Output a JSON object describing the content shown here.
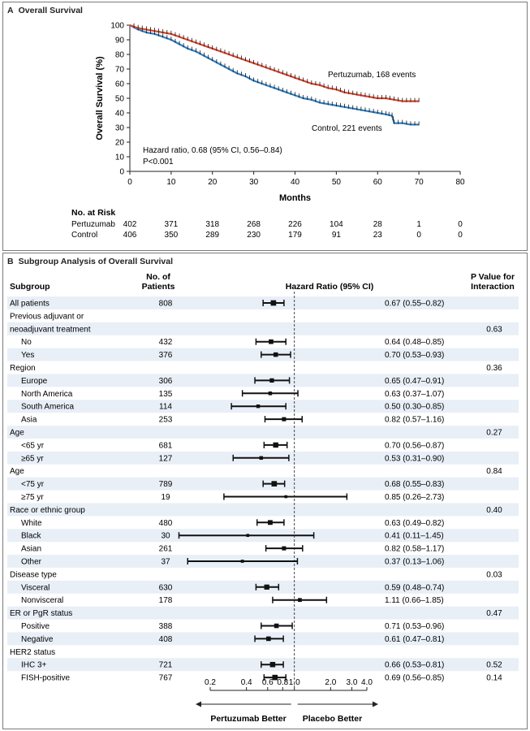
{
  "chart_data": [
    {
      "type": "line",
      "panel_letter": "A",
      "title": "Overall Survival",
      "xlabel": "Months",
      "ylabel": "Overall Survival (%)",
      "xlim": [
        0,
        80
      ],
      "ylim": [
        0,
        100
      ],
      "xticks": [
        0,
        10,
        20,
        30,
        40,
        50,
        60,
        70,
        80
      ],
      "yticks": [
        0,
        10,
        20,
        30,
        40,
        50,
        60,
        70,
        80,
        90,
        100
      ],
      "grid": false,
      "series": [
        {
          "name": "Pertuzumab, 168 events",
          "color": "#d9442c",
          "x": [
            0,
            2,
            4,
            6,
            8,
            10,
            12,
            14,
            16,
            18,
            20,
            22,
            24,
            26,
            28,
            30,
            32,
            34,
            36,
            38,
            40,
            42,
            44,
            46,
            48,
            50,
            52,
            54,
            56,
            58,
            60,
            62,
            64,
            66,
            68,
            70
          ],
          "y": [
            100,
            98,
            97,
            96,
            95,
            94,
            92,
            90,
            88,
            86,
            84,
            82,
            80,
            78,
            76,
            74,
            72,
            70,
            68,
            66,
            64,
            62,
            60,
            59,
            57,
            56,
            54,
            53,
            52,
            51,
            50,
            50,
            49,
            48,
            48,
            48
          ]
        },
        {
          "name": "Control, 221 events",
          "color": "#2f7fc1",
          "x": [
            0,
            2,
            4,
            6,
            8,
            10,
            12,
            14,
            16,
            18,
            20,
            22,
            24,
            26,
            28,
            30,
            32,
            34,
            36,
            38,
            40,
            42,
            44,
            46,
            48,
            50,
            52,
            54,
            56,
            58,
            60,
            62,
            63.5,
            64,
            66,
            68,
            70
          ],
          "y": [
            100,
            97,
            95,
            94,
            92,
            90,
            87,
            84,
            82,
            79,
            76,
            73,
            70,
            67,
            65,
            62,
            60,
            58,
            56,
            54,
            52,
            50,
            49,
            47,
            46,
            45,
            44,
            43,
            42,
            41,
            40,
            39,
            38,
            33,
            33,
            32,
            32
          ]
        }
      ],
      "annotations": [
        "Hazard ratio, 0.68 (95% CI, 0.56–0.84)",
        "P<0.001"
      ],
      "risk_table": {
        "header": "No. at Risk",
        "months": [
          0,
          10,
          20,
          30,
          40,
          50,
          60,
          70,
          80
        ],
        "rows": [
          {
            "label": "Pertuzumab",
            "values": [
              "402",
              "371",
              "318",
              "268",
              "226",
              "104",
              "28",
              "1",
              "0"
            ]
          },
          {
            "label": "Control",
            "values": [
              "406",
              "350",
              "289",
              "230",
              "179",
              "91",
              "23",
              "0",
              "0"
            ]
          }
        ]
      }
    },
    {
      "type": "forest",
      "panel_letter": "B",
      "title": "Subgroup Analysis of Overall Survival",
      "headers": {
        "subgroup": "Subgroup",
        "patients_line1": "No. of",
        "patients_line2": "Patients",
        "hr": "Hazard Ratio (95% CI)",
        "pvalue_line1": "P Value for",
        "pvalue_line2": "Interaction"
      },
      "xaxis": {
        "scale": "log",
        "ticks": [
          "0.2",
          "0.4",
          "0.6",
          "0.8",
          "1.0",
          "2.0",
          "3.0",
          "4.0"
        ],
        "tick_values": [
          0.2,
          0.4,
          0.6,
          0.8,
          1.0,
          2.0,
          3.0,
          4.0
        ],
        "range": [
          0.2,
          4.0
        ],
        "left_label": "Pertuzumab Better",
        "right_label": "Placebo Better"
      },
      "rows": [
        {
          "label": "All patients",
          "indent": 0,
          "n": "808",
          "hr": 0.67,
          "lo": 0.55,
          "hi": 0.82,
          "text": "0.67 (0.55–0.82)",
          "p": ""
        },
        {
          "label": "Previous adjuvant or",
          "indent": 0,
          "n": "",
          "hr": null,
          "lo": null,
          "hi": null,
          "text": "",
          "p": ""
        },
        {
          "label": "neoadjuvant treatment",
          "indent": 0,
          "n": "",
          "hr": null,
          "lo": null,
          "hi": null,
          "text": "",
          "p": "0.63"
        },
        {
          "label": "No",
          "indent": 1,
          "n": "432",
          "hr": 0.64,
          "lo": 0.48,
          "hi": 0.85,
          "text": "0.64 (0.48–0.85)",
          "p": ""
        },
        {
          "label": "Yes",
          "indent": 1,
          "n": "376",
          "hr": 0.7,
          "lo": 0.53,
          "hi": 0.93,
          "text": "0.70 (0.53–0.93)",
          "p": ""
        },
        {
          "label": "Region",
          "indent": 0,
          "n": "",
          "hr": null,
          "lo": null,
          "hi": null,
          "text": "",
          "p": "0.36"
        },
        {
          "label": "Europe",
          "indent": 1,
          "n": "306",
          "hr": 0.65,
          "lo": 0.47,
          "hi": 0.91,
          "text": "0.65 (0.47–0.91)",
          "p": ""
        },
        {
          "label": "North America",
          "indent": 1,
          "n": "135",
          "hr": 0.63,
          "lo": 0.37,
          "hi": 1.07,
          "text": "0.63 (0.37–1.07)",
          "p": ""
        },
        {
          "label": "South America",
          "indent": 1,
          "n": "114",
          "hr": 0.5,
          "lo": 0.3,
          "hi": 0.85,
          "text": "0.50 (0.30–0.85)",
          "p": ""
        },
        {
          "label": "Asia",
          "indent": 1,
          "n": "253",
          "hr": 0.82,
          "lo": 0.57,
          "hi": 1.16,
          "text": "0.82 (0.57–1.16)",
          "p": ""
        },
        {
          "label": "Age",
          "indent": 0,
          "n": "",
          "hr": null,
          "lo": null,
          "hi": null,
          "text": "",
          "p": "0.27"
        },
        {
          "label": "<65 yr",
          "indent": 1,
          "n": "681",
          "hr": 0.7,
          "lo": 0.56,
          "hi": 0.87,
          "text": "0.70 (0.56–0.87)",
          "p": ""
        },
        {
          "label": "≥65 yr",
          "indent": 1,
          "n": "127",
          "hr": 0.53,
          "lo": 0.31,
          "hi": 0.9,
          "text": "0.53 (0.31–0.90)",
          "p": ""
        },
        {
          "label": "Age",
          "indent": 0,
          "n": "",
          "hr": null,
          "lo": null,
          "hi": null,
          "text": "",
          "p": "0.84"
        },
        {
          "label": "<75 yr",
          "indent": 1,
          "n": "789",
          "hr": 0.68,
          "lo": 0.55,
          "hi": 0.83,
          "text": "0.68 (0.55–0.83)",
          "p": ""
        },
        {
          "label": "≥75 yr",
          "indent": 1,
          "n": "19",
          "hr": 0.85,
          "lo": 0.26,
          "hi": 2.73,
          "text": "0.85 (0.26–2.73)",
          "p": ""
        },
        {
          "label": "Race or ethnic group",
          "indent": 0,
          "n": "",
          "hr": null,
          "lo": null,
          "hi": null,
          "text": "",
          "p": "0.40"
        },
        {
          "label": "White",
          "indent": 1,
          "n": "480",
          "hr": 0.63,
          "lo": 0.49,
          "hi": 0.82,
          "text": "0.63 (0.49–0.82)",
          "p": ""
        },
        {
          "label": "Black",
          "indent": 1,
          "n": "30",
          "hr": 0.41,
          "lo": 0.11,
          "hi": 1.45,
          "text": "0.41 (0.11–1.45)",
          "p": ""
        },
        {
          "label": "Asian",
          "indent": 1,
          "n": "261",
          "hr": 0.82,
          "lo": 0.58,
          "hi": 1.17,
          "text": "0.82 (0.58–1.17)",
          "p": ""
        },
        {
          "label": "Other",
          "indent": 1,
          "n": "37",
          "hr": 0.37,
          "lo": 0.13,
          "hi": 1.06,
          "text": "0.37 (0.13–1.06)",
          "p": ""
        },
        {
          "label": "Disease type",
          "indent": 0,
          "n": "",
          "hr": null,
          "lo": null,
          "hi": null,
          "text": "",
          "p": "0.03"
        },
        {
          "label": "Visceral",
          "indent": 1,
          "n": "630",
          "hr": 0.59,
          "lo": 0.48,
          "hi": 0.74,
          "text": "0.59 (0.48–0.74)",
          "p": ""
        },
        {
          "label": "Nonvisceral",
          "indent": 1,
          "n": "178",
          "hr": 1.11,
          "lo": 0.66,
          "hi": 1.85,
          "text": "1.11 (0.66–1.85)",
          "p": ""
        },
        {
          "label": "ER or PgR status",
          "indent": 0,
          "n": "",
          "hr": null,
          "lo": null,
          "hi": null,
          "text": "",
          "p": "0.47"
        },
        {
          "label": "Positive",
          "indent": 1,
          "n": "388",
          "hr": 0.71,
          "lo": 0.53,
          "hi": 0.96,
          "text": "0.71 (0.53–0.96)",
          "p": ""
        },
        {
          "label": "Negative",
          "indent": 1,
          "n": "408",
          "hr": 0.61,
          "lo": 0.47,
          "hi": 0.81,
          "text": "0.61 (0.47–0.81)",
          "p": ""
        },
        {
          "label": "HER2 status",
          "indent": 0,
          "n": "",
          "hr": null,
          "lo": null,
          "hi": null,
          "text": "",
          "p": ""
        },
        {
          "label": "IHC 3+",
          "indent": 1,
          "n": "721",
          "hr": 0.66,
          "lo": 0.53,
          "hi": 0.81,
          "text": "0.66 (0.53–0.81)",
          "p": "0.52"
        },
        {
          "label": "FISH-positive",
          "indent": 1,
          "n": "767",
          "hr": 0.69,
          "lo": 0.56,
          "hi": 0.85,
          "text": "0.69 (0.56–0.85)",
          "p": "0.14"
        }
      ]
    }
  ]
}
